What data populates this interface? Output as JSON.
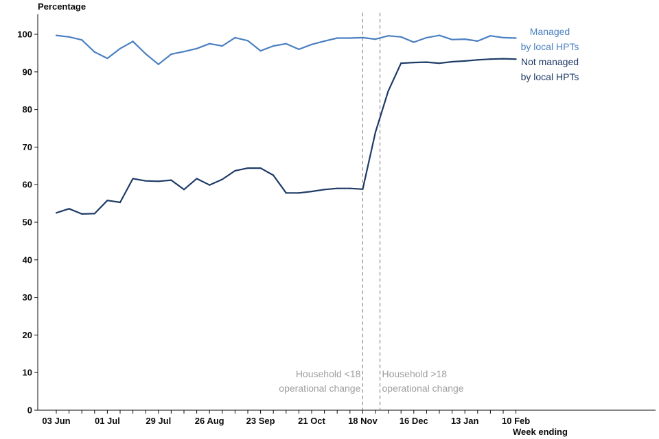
{
  "chart_data": {
    "type": "line",
    "ylabel": "Percentage",
    "xlabel": "Week ending",
    "ylim": [
      0,
      105
    ],
    "yticks": [
      0,
      10,
      20,
      30,
      40,
      50,
      60,
      70,
      80,
      90,
      100
    ],
    "x_tick_labels": [
      "03 Jun",
      "01 Jul",
      "29 Jul",
      "26 Aug",
      "23 Sep",
      "21 Oct",
      "18 Nov",
      "16 Dec",
      "13 Jan",
      "10 Feb"
    ],
    "x_tick_weeks": [
      0,
      4,
      8,
      12,
      16,
      20,
      24,
      28,
      32,
      36
    ],
    "n_weeks": 37,
    "grid": false,
    "series": [
      {
        "name_lines": [
          "Managed",
          "by local HPTs"
        ],
        "color": "#4a7fc1",
        "values": [
          99.7,
          99.3,
          98.5,
          95.3,
          93.6,
          96.2,
          98.1,
          94.8,
          92.0,
          94.7,
          95.4,
          96.2,
          97.5,
          96.9,
          99.1,
          98.3,
          95.6,
          96.9,
          97.5,
          96.0,
          97.3,
          98.2,
          99.0,
          99.0,
          99.1,
          98.7,
          99.6,
          99.3,
          97.9,
          99.1,
          99.7,
          98.6,
          98.7,
          98.2,
          99.6,
          99.1,
          99.0
        ]
      },
      {
        "name_lines": [
          "Not managed",
          "by local HPTs"
        ],
        "color": "#1d3a66",
        "values": [
          52.5,
          53.6,
          52.2,
          52.3,
          55.8,
          55.3,
          61.6,
          61.0,
          60.9,
          61.2,
          58.7,
          61.6,
          59.9,
          61.4,
          63.7,
          64.4,
          64.4,
          62.5,
          57.8,
          57.8,
          58.2,
          58.7,
          59.0,
          59.0,
          58.8,
          74.0,
          84.9,
          92.3,
          92.5,
          92.6,
          92.3,
          92.7,
          92.9,
          93.2,
          93.4,
          93.5,
          93.4
        ]
      }
    ],
    "annotations": [
      {
        "week": 24.0,
        "lines": [
          "Household <18",
          "operational change"
        ],
        "align": "left"
      },
      {
        "week": 25.35,
        "lines": [
          "Household >18",
          "operational change"
        ],
        "align": "right"
      }
    ],
    "colors": {
      "axis": "#0b0c0c",
      "annotation": "#9e9e9e",
      "annotation_line": "#8c8c8c"
    }
  }
}
